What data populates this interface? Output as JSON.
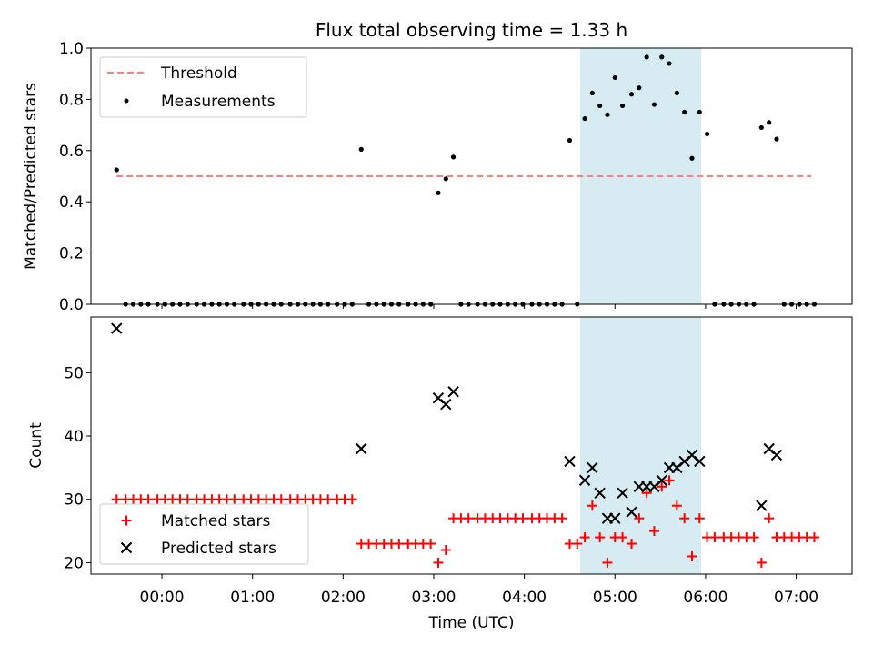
{
  "chart_data": [
    {
      "type": "scatter",
      "title": "Flux total observing time = 1.33 h",
      "xlabel": "",
      "ylabel": "Matched/Predicted stars",
      "ylim": [
        0,
        1.0
      ],
      "yticks": [
        "0.0",
        "0.2",
        "0.4",
        "0.6",
        "0.8",
        "1.0"
      ],
      "highlight_span": {
        "start": "04:37",
        "end": "05:57",
        "color": "#add8e6"
      },
      "legend": {
        "position": "top-left",
        "entries": [
          "Threshold",
          "Measurements"
        ]
      },
      "threshold": {
        "name": "Threshold",
        "value": 0.5,
        "from": "23:30",
        "to": "07:10",
        "color": "#ff7f7f",
        "style": "dashed"
      },
      "measurements": {
        "name": "Measurements",
        "color": "#000000",
        "x": [
          "23:30",
          "23:36",
          "23:41",
          "23:46",
          "23:51",
          "23:57",
          "00:02",
          "00:07",
          "00:12",
          "00:17",
          "00:23",
          "00:28",
          "00:33",
          "00:38",
          "00:43",
          "00:48",
          "00:54",
          "00:59",
          "01:04",
          "01:09",
          "01:14",
          "01:19",
          "01:25",
          "01:30",
          "01:35",
          "01:40",
          "01:45",
          "01:50",
          "01:56",
          "02:01",
          "02:06",
          "02:12",
          "02:17",
          "02:22",
          "02:27",
          "02:32",
          "02:37",
          "02:43",
          "02:48",
          "02:53",
          "02:58",
          "03:03",
          "03:08",
          "03:13",
          "03:18",
          "03:23",
          "03:29",
          "03:34",
          "03:39",
          "03:44",
          "03:49",
          "03:54",
          "03:59",
          "04:05",
          "04:10",
          "04:15",
          "04:20",
          "04:25",
          "04:30",
          "04:35",
          "04:40",
          "04:45",
          "04:50",
          "04:55",
          "05:00",
          "05:05",
          "05:11",
          "05:16",
          "05:21",
          "05:26",
          "05:31",
          "05:36",
          "05:41",
          "05:46",
          "05:51",
          "05:56",
          "06:01",
          "06:06",
          "06:12",
          "06:17",
          "06:22",
          "06:27",
          "06:32",
          "06:37",
          "06:42",
          "06:47",
          "06:52",
          "06:57",
          "07:02",
          "07:07",
          "07:12"
        ],
        "y": [
          0.525,
          0.0,
          0.0,
          0.0,
          0.0,
          0.0,
          0.0,
          0.0,
          0.0,
          0.0,
          0.0,
          0.0,
          0.0,
          0.0,
          0.0,
          0.0,
          0.0,
          0.0,
          0.0,
          0.0,
          0.0,
          0.0,
          0.0,
          0.0,
          0.0,
          0.0,
          0.0,
          0.0,
          0.0,
          0.0,
          0.0,
          0.605,
          0.0,
          0.0,
          0.0,
          0.0,
          0.0,
          0.0,
          0.0,
          0.0,
          0.0,
          0.435,
          0.49,
          0.575,
          0.0,
          0.0,
          0.0,
          0.0,
          0.0,
          0.0,
          0.0,
          0.0,
          0.0,
          0.0,
          0.0,
          0.0,
          0.0,
          0.0,
          0.64,
          0.0,
          0.725,
          0.825,
          0.775,
          0.74,
          0.885,
          0.775,
          0.82,
          0.845,
          0.965,
          0.78,
          0.965,
          0.94,
          0.825,
          0.75,
          0.57,
          0.75,
          0.665,
          0.0,
          0.0,
          0.0,
          0.0,
          0.0,
          0.0,
          0.69,
          0.71,
          0.645,
          0.0,
          0.0,
          0.0,
          0.0,
          0.0
        ]
      }
    },
    {
      "type": "scatter",
      "title": "",
      "xlabel": "Time (UTC)",
      "ylabel": "Count",
      "ylim": [
        18.2,
        58.8
      ],
      "yticks": [
        "20",
        "30",
        "40",
        "50"
      ],
      "xticks": [
        "00:00",
        "01:00",
        "02:00",
        "03:00",
        "04:00",
        "05:00",
        "06:00",
        "07:00"
      ],
      "highlight_span": {
        "start": "04:37",
        "end": "05:57",
        "color": "#add8e6"
      },
      "legend": {
        "position": "bottom-left",
        "entries": [
          "Matched stars",
          "Predicted stars"
        ]
      },
      "series": [
        {
          "name": "Matched stars",
          "marker": "+",
          "color": "#ff0000",
          "x": [
            "23:30",
            "23:36",
            "23:41",
            "23:46",
            "23:51",
            "23:57",
            "00:02",
            "00:07",
            "00:12",
            "00:17",
            "00:23",
            "00:28",
            "00:33",
            "00:38",
            "00:43",
            "00:48",
            "00:54",
            "00:59",
            "01:04",
            "01:09",
            "01:14",
            "01:19",
            "01:25",
            "01:30",
            "01:35",
            "01:40",
            "01:45",
            "01:50",
            "01:56",
            "02:01",
            "02:06",
            "02:12",
            "02:17",
            "02:22",
            "02:27",
            "02:32",
            "02:37",
            "02:43",
            "02:48",
            "02:53",
            "02:58",
            "03:03",
            "03:08",
            "03:13",
            "03:18",
            "03:23",
            "03:29",
            "03:34",
            "03:39",
            "03:44",
            "03:49",
            "03:54",
            "03:59",
            "04:05",
            "04:10",
            "04:15",
            "04:20",
            "04:25",
            "04:30",
            "04:35",
            "04:40",
            "04:45",
            "04:50",
            "04:55",
            "05:00",
            "05:05",
            "05:11",
            "05:16",
            "05:21",
            "05:26",
            "05:31",
            "05:36",
            "05:41",
            "05:46",
            "05:51",
            "05:56",
            "06:01",
            "06:06",
            "06:12",
            "06:17",
            "06:22",
            "06:27",
            "06:32",
            "06:37",
            "06:42",
            "06:47",
            "06:52",
            "06:57",
            "07:02",
            "07:07",
            "07:12"
          ],
          "y": [
            30,
            30,
            30,
            30,
            30,
            30,
            30,
            30,
            30,
            30,
            30,
            30,
            30,
            30,
            30,
            30,
            30,
            30,
            30,
            30,
            30,
            30,
            30,
            30,
            30,
            30,
            30,
            30,
            30,
            30,
            30,
            23,
            23,
            23,
            23,
            23,
            23,
            23,
            23,
            23,
            23,
            20,
            22,
            27,
            27,
            27,
            27,
            27,
            27,
            27,
            27,
            27,
            27,
            27,
            27,
            27,
            27,
            27,
            23,
            23,
            24,
            29,
            24,
            20,
            24,
            24,
            23,
            27,
            31,
            25,
            32,
            33,
            29,
            27,
            21,
            27,
            24,
            24,
            24,
            24,
            24,
            24,
            24,
            20,
            27,
            24,
            24,
            24,
            24,
            24,
            24
          ]
        },
        {
          "name": "Predicted stars",
          "marker": "x",
          "color": "#000000",
          "x": [
            "23:30",
            "02:12",
            "03:03",
            "03:08",
            "03:13",
            "04:30",
            "04:40",
            "04:45",
            "04:50",
            "04:55",
            "05:00",
            "05:05",
            "05:11",
            "05:16",
            "05:21",
            "05:26",
            "05:31",
            "05:36",
            "05:41",
            "05:46",
            "05:51",
            "05:56",
            "06:37",
            "06:42",
            "06:47"
          ],
          "y": [
            57,
            38,
            46,
            45,
            47,
            36,
            33,
            35,
            31,
            27,
            27,
            31,
            28,
            32,
            32,
            32,
            33,
            35,
            35,
            36,
            37,
            36,
            29,
            38,
            37
          ]
        }
      ]
    }
  ]
}
